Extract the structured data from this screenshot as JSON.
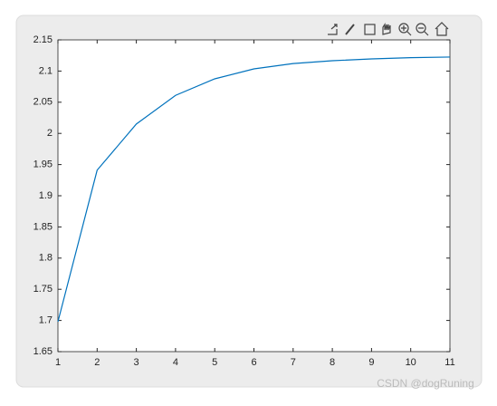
{
  "chart_data": {
    "type": "line",
    "x": [
      1,
      2,
      3,
      4,
      5,
      6,
      7,
      8,
      9,
      10,
      11
    ],
    "series": [
      {
        "color": "#0072bd",
        "values": [
          1.698,
          1.941,
          2.015,
          2.061,
          2.0875,
          2.1035,
          2.112,
          2.1166,
          2.1195,
          2.1215,
          2.1225
        ]
      }
    ],
    "xlim": [
      1,
      11
    ],
    "xticks": [
      1,
      2,
      3,
      4,
      5,
      6,
      7,
      8,
      9,
      10,
      11
    ],
    "ylim": [
      1.65,
      2.15
    ],
    "yticks": [
      1.65,
      1.7,
      1.75,
      1.8,
      1.85,
      1.9,
      1.95,
      2,
      2.05,
      2.1,
      2.15
    ],
    "grid": false,
    "watermark": "CSDN @dogRuning"
  }
}
